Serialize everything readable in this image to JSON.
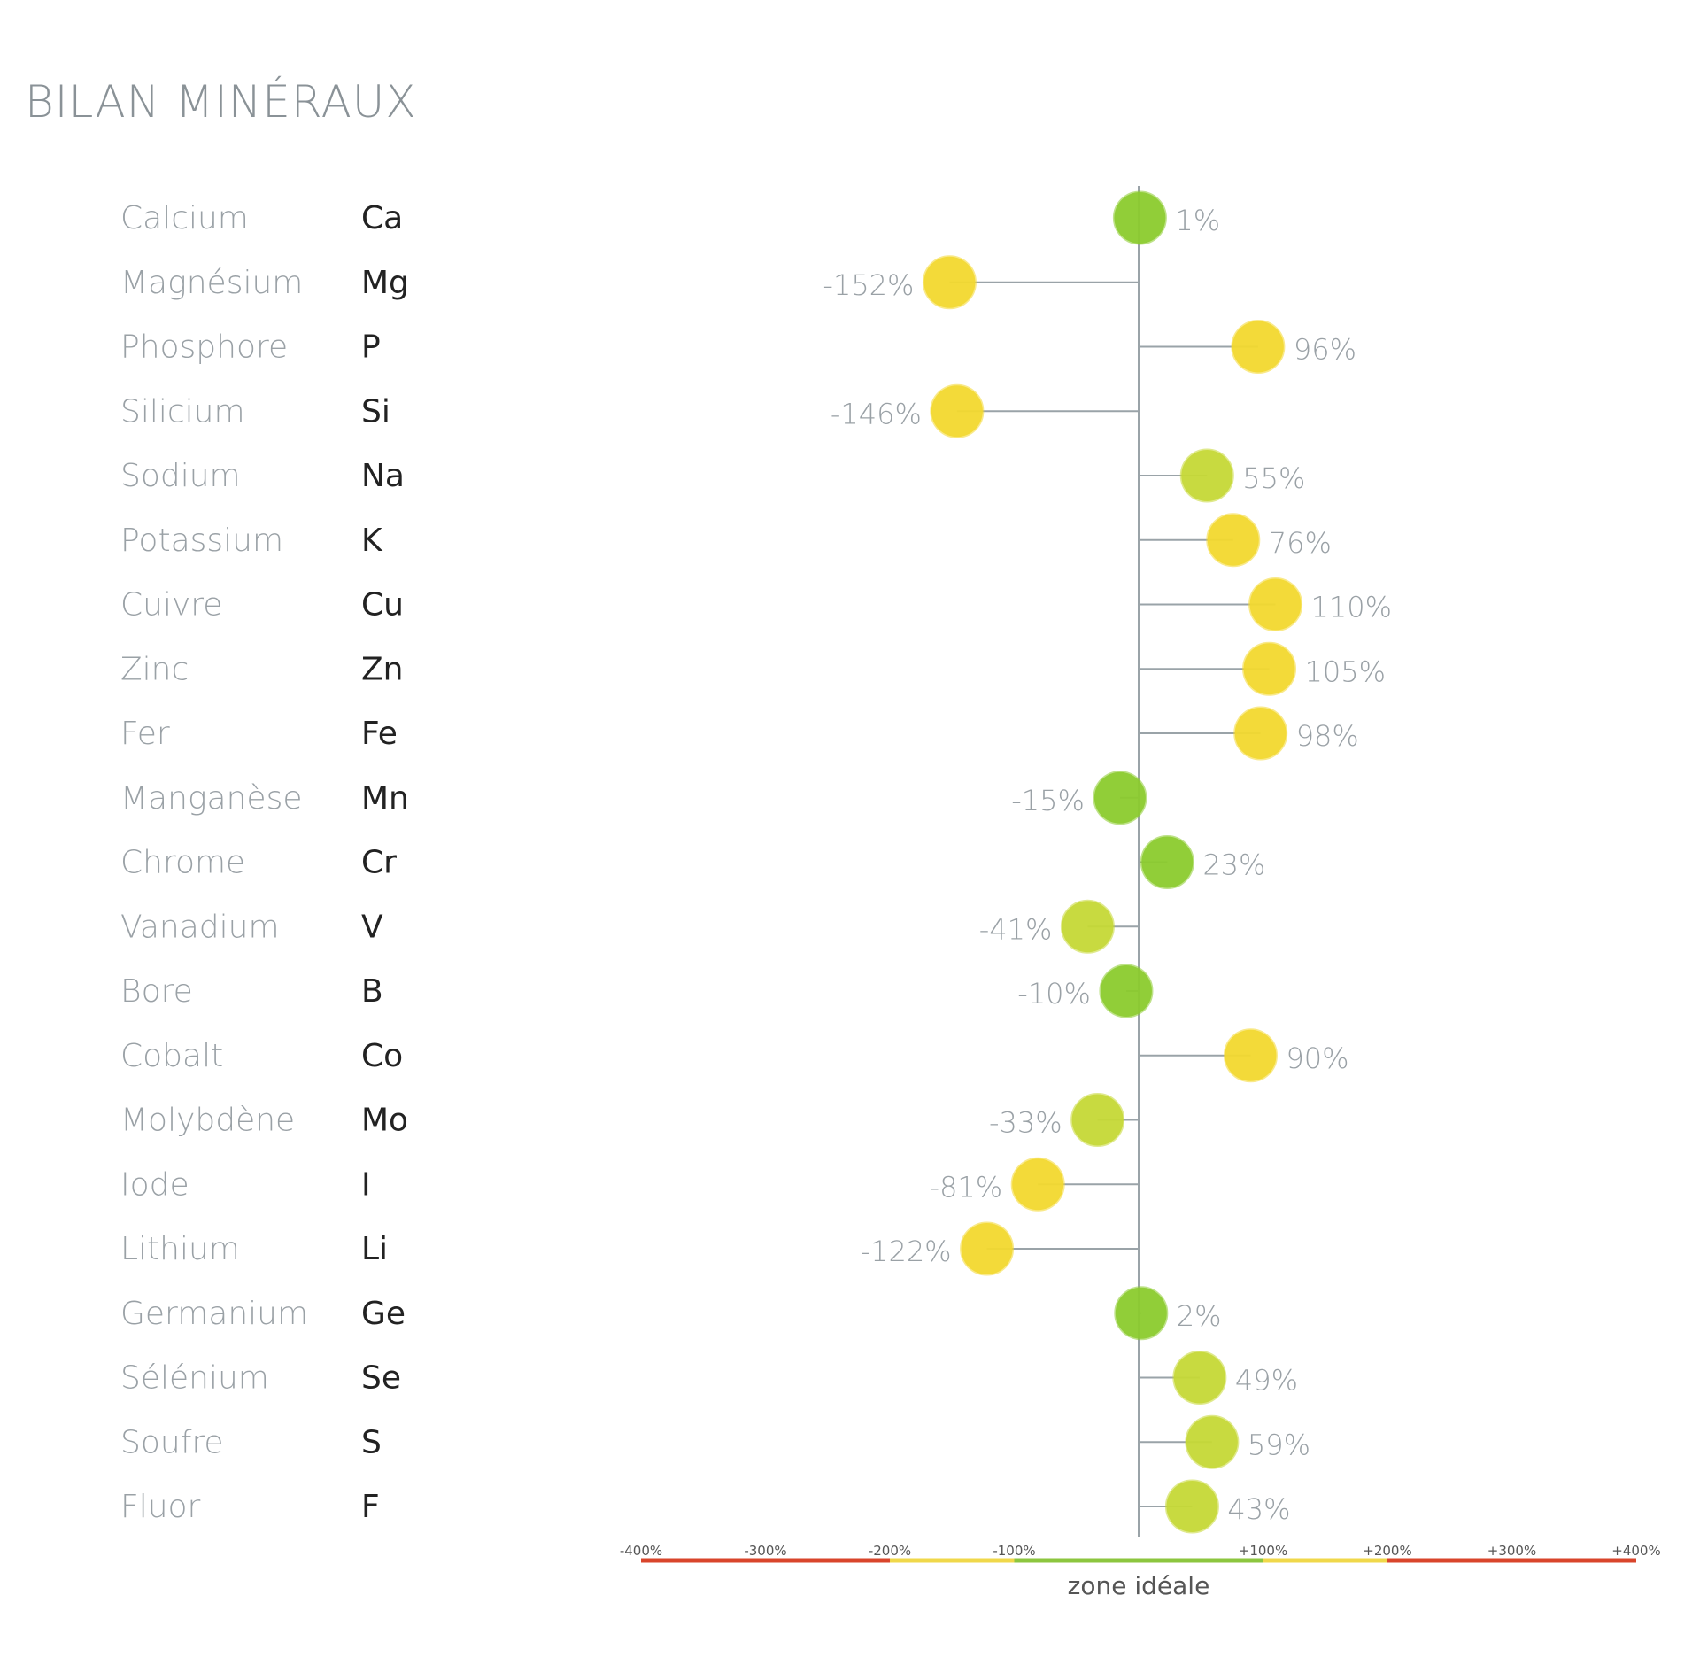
{
  "chart_data": {
    "type": "scatter",
    "title": "BILAN MINÉRAUX",
    "xlabel": "zone idéale",
    "xlim": [
      -400,
      400
    ],
    "x_ticks": [
      "-400%",
      "-300%",
      "-200%",
      "-100%",
      "+100%",
      "+200%",
      "+300%",
      "+400%"
    ],
    "tick_values": [
      -400,
      -300,
      -200,
      -100,
      100,
      200,
      300,
      400
    ],
    "zones": [
      {
        "from": -400,
        "to": -200,
        "color": "#d9452b"
      },
      {
        "from": -200,
        "to": -100,
        "color": "#f0d84a"
      },
      {
        "from": -100,
        "to": 100,
        "color": "#8cc63f"
      },
      {
        "from": 100,
        "to": 200,
        "color": "#f0d84a"
      },
      {
        "from": 200,
        "to": 400,
        "color": "#d9452b"
      }
    ],
    "colors": {
      "green": "#8ccc2e",
      "lime": "#c6d936",
      "yellow": "#f3d92f",
      "label": "#9aa1a6",
      "axis": "#9aa3a8"
    },
    "rows": [
      {
        "name": "Calcium",
        "symbol": "Ca",
        "value": 1,
        "label": "1%"
      },
      {
        "name": "Magnésium",
        "symbol": "Mg",
        "value": -152,
        "label": "-152%"
      },
      {
        "name": "Phosphore",
        "symbol": "P",
        "value": 96,
        "label": "96%"
      },
      {
        "name": "Silicium",
        "symbol": "Si",
        "value": -146,
        "label": "-146%"
      },
      {
        "name": "Sodium",
        "symbol": "Na",
        "value": 55,
        "label": "55%"
      },
      {
        "name": "Potassium",
        "symbol": "K",
        "value": 76,
        "label": "76%"
      },
      {
        "name": "Cuivre",
        "symbol": "Cu",
        "value": 110,
        "label": "110%"
      },
      {
        "name": "Zinc",
        "symbol": "Zn",
        "value": 105,
        "label": "105%"
      },
      {
        "name": "Fer",
        "symbol": "Fe",
        "value": 98,
        "label": "98%"
      },
      {
        "name": "Manganèse",
        "symbol": "Mn",
        "value": -15,
        "label": "-15%"
      },
      {
        "name": "Chrome",
        "symbol": "Cr",
        "value": 23,
        "label": "23%"
      },
      {
        "name": "Vanadium",
        "symbol": "V",
        "value": -41,
        "label": "-41%"
      },
      {
        "name": "Bore",
        "symbol": "B",
        "value": -10,
        "label": "-10%"
      },
      {
        "name": "Cobalt",
        "symbol": "Co",
        "value": 90,
        "label": "90%"
      },
      {
        "name": "Molybdène",
        "symbol": "Mo",
        "value": -33,
        "label": "-33%"
      },
      {
        "name": "Iode",
        "symbol": "I",
        "value": -81,
        "label": "-81%"
      },
      {
        "name": "Lithium",
        "symbol": "Li",
        "value": -122,
        "label": "-122%"
      },
      {
        "name": "Germanium",
        "symbol": "Ge",
        "value": 2,
        "label": "2%"
      },
      {
        "name": "Sélénium",
        "symbol": "Se",
        "value": 49,
        "label": "49%"
      },
      {
        "name": "Soufre",
        "symbol": "S",
        "value": 59,
        "label": "59%"
      },
      {
        "name": "Fluor",
        "symbol": "F",
        "value": 43,
        "label": "43%"
      }
    ]
  }
}
